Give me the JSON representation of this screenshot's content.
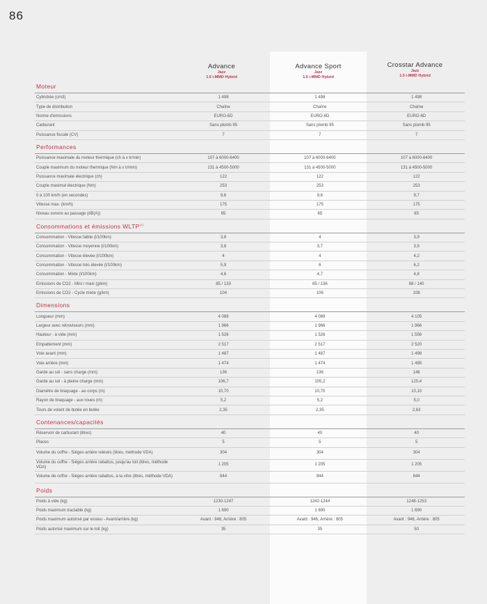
{
  "page_number": "86",
  "columns": [
    {
      "name": "Advance",
      "model": "Jazz",
      "engine": "1.5 i-MMD Hybrid"
    },
    {
      "name": "Advance Sport",
      "model": "Jazz",
      "engine": "1.5 i-MMD Hybrid"
    },
    {
      "name": "Crosstar Advance",
      "model": "Jazz",
      "engine": "1.5 i-MMD Hybrid"
    }
  ],
  "sections": [
    {
      "title": "Moteur",
      "rows": [
        [
          "Cylindrée (cm3)",
          "1 498",
          "1 498",
          "1 498"
        ],
        [
          "Type de distribution",
          "Chaîne",
          "Chaîne",
          "Chaîne"
        ],
        [
          "Norme d'émissions",
          "EURO-6D",
          "EURO-6D",
          "EURO-6D"
        ],
        [
          "Carburant",
          "Sans plomb 95",
          "Sans plomb 95",
          "Sans plomb 95"
        ],
        [
          "Puissance fiscale (CV)",
          "7",
          "7",
          "7"
        ]
      ]
    },
    {
      "title": "Performances",
      "rows": [
        [
          "Puissance maximale du moteur thermique (ch à x tr/min)",
          "107 à 6000-6400",
          "107 à 6000-6400",
          "107 à 6000-6400"
        ],
        [
          "Couple maximum du moteur thermique (Nm à x tr/min)",
          "131 à 4500-5000",
          "131 à 4500-5000",
          "131 à 4500-5000"
        ],
        [
          "Puissance maximale électrique (ch)",
          "122",
          "122",
          "122"
        ],
        [
          "Couple maximal électrique (Nm)",
          "253",
          "253",
          "253"
        ],
        [
          "0 à 100 km/h (en secondes)",
          "9,6",
          "9,6",
          "9,7"
        ],
        [
          "Vitesse max. (km/h)",
          "175",
          "175",
          "175"
        ],
        [
          "Niveau sonore au passage (dB(A))",
          "65",
          "65",
          "65"
        ]
      ]
    },
    {
      "title": "Consommations et émissions WLTP",
      "sup": "(1)",
      "rows": [
        [
          "Consommation - Vitesse faible (l/100km)",
          "3,8",
          "4",
          "3,9"
        ],
        [
          "Consommation - Vitesse moyenne (l/100km)",
          "3,8",
          "3,7",
          "3,9"
        ],
        [
          "Consommation - Vitesse élevée (l/100km)",
          "4",
          "4",
          "4,2"
        ],
        [
          "Consommation - Vitesse très élevée (l/100km)",
          "5,9",
          "6",
          "6,2"
        ],
        [
          "Consommation - Mixte (l/100km)",
          "4,6",
          "4,7",
          "4,8"
        ],
        [
          "Emissions de CO2 - Mini / maxi (g/km)",
          "85 / 133",
          "85 / 136",
          "88 / 140"
        ],
        [
          "Emissions de CO2 - Cycle mixte (g/km)",
          "104",
          "106",
          "108"
        ]
      ]
    },
    {
      "title": "Dimensions",
      "rows": [
        [
          "Longueur (mm)",
          "4 089",
          "4 089",
          "4 105"
        ],
        [
          "Largeur avec rétroviseurs (mm)",
          "1 966",
          "1 966",
          "1 966"
        ],
        [
          "Hauteur - à vide (mm)",
          "1 526",
          "1 526",
          "1 556"
        ],
        [
          "Empattement (mm)",
          "2 517",
          "2 517",
          "2 520"
        ],
        [
          "Voie avant (mm)",
          "1 487",
          "1 487",
          "1 498"
        ],
        [
          "Voie arrière (mm)",
          "1 474",
          "1 474",
          "1 485"
        ],
        [
          "Garde au sol - sans charge (mm)",
          "136",
          "136",
          "146"
        ],
        [
          "Garde au sol - à pleine charge (mm)",
          "106,7",
          "105,2",
          "120,4"
        ],
        [
          "Diamètre de braquage - au corps (m)",
          "10,70",
          "10,70",
          "10,10"
        ],
        [
          "Rayon de braquage - aux roues (m)",
          "5,2",
          "5,2",
          "5,0"
        ],
        [
          "Tours de volant de butée en butée",
          "2,35",
          "2,35",
          "2,63"
        ]
      ]
    },
    {
      "title": "Contenances/capacités",
      "rows": [
        [
          "Réservoir de carburant (litres)",
          "40",
          "40",
          "40"
        ],
        [
          "Places",
          "5",
          "5",
          "5"
        ],
        [
          "Volume du coffre - Sièges arrière relevés (litres, méthode VDA)",
          "304",
          "304",
          "304"
        ],
        [
          "Volume du coffre - Sièges arrière rabattus, jusqu'au toit (litres, méthode VDA)",
          "1 205",
          "1 205",
          "1 205"
        ],
        [
          "Volume de coffre - Sièges arrière rabattus, à la vitre (litres, méthode VDA)",
          "844",
          "844",
          "844"
        ]
      ]
    },
    {
      "title": "Poids",
      "rows": [
        [
          "Poids à vide (kg)",
          "1230-1247",
          "1242-1244",
          "1248-1253"
        ],
        [
          "Poids maximum tractable (kg)",
          "1 690",
          "1 690",
          "1 690"
        ],
        [
          "Poids maximum autorisé par essieu - Avant/arrière (kg)",
          "Avant : 946, Arrière : 805",
          "Avant : 946, Arrière : 805",
          "Avant : 946, Arrière : 805"
        ],
        [
          "Poids autorisé maximum sur le toit (kg)",
          "35",
          "35",
          "50"
        ]
      ]
    }
  ]
}
